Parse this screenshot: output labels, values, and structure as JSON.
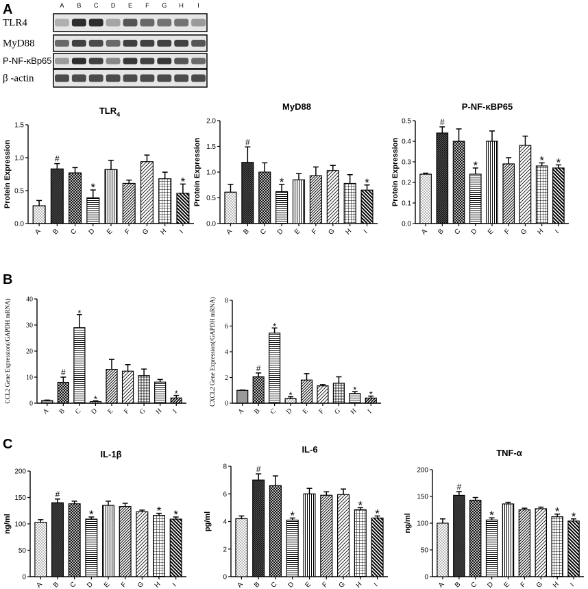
{
  "panel_letters": {
    "a": "A",
    "b": "B",
    "c": "C"
  },
  "blot": {
    "lanes": [
      "A",
      "B",
      "C",
      "D",
      "E",
      "F",
      "G",
      "H",
      "I"
    ],
    "rows": [
      {
        "label": "TLR4",
        "intensity": [
          0.25,
          0.9,
          0.9,
          0.3,
          0.7,
          0.6,
          0.55,
          0.55,
          0.35
        ]
      },
      {
        "label": "MyD88",
        "intensity": [
          0.6,
          0.8,
          0.75,
          0.6,
          0.8,
          0.8,
          0.8,
          0.8,
          0.7
        ]
      },
      {
        "label": "P-NF-κBp65",
        "intensity": [
          0.35,
          0.9,
          0.8,
          0.45,
          0.85,
          0.8,
          0.85,
          0.7,
          0.6
        ]
      },
      {
        "label": "β -actin",
        "intensity": [
          0.75,
          0.75,
          0.75,
          0.75,
          0.75,
          0.75,
          0.75,
          0.75,
          0.75
        ]
      }
    ]
  },
  "chart_data": [
    {
      "id": "tlr4",
      "type": "bar",
      "title": "TLR",
      "title_sub": "4",
      "ylabel": "Protein Expression",
      "categories": [
        "A",
        "B",
        "C",
        "D",
        "E",
        "F",
        "G",
        "H",
        "I"
      ],
      "values": [
        0.27,
        0.83,
        0.77,
        0.39,
        0.82,
        0.61,
        0.94,
        0.68,
        0.46
      ],
      "errors": [
        0.08,
        0.08,
        0.08,
        0.12,
        0.14,
        0.05,
        0.1,
        0.1,
        0.14
      ],
      "markers": [
        "",
        "#",
        "",
        "*",
        "",
        "",
        "",
        "",
        "*"
      ],
      "ylim": [
        0,
        1.5
      ],
      "yticks": [
        "0.0",
        "0.5",
        "1.0",
        "1.5"
      ],
      "ytick_values": [
        0,
        0.5,
        1,
        1.5
      ]
    },
    {
      "id": "myd88",
      "type": "bar",
      "title": "MyD88",
      "ylabel": "Protein Expression",
      "categories": [
        "A",
        "B",
        "C",
        "D",
        "E",
        "F",
        "G",
        "H",
        "I"
      ],
      "values": [
        0.61,
        1.19,
        1.0,
        0.62,
        0.85,
        0.93,
        1.03,
        0.78,
        0.65
      ],
      "errors": [
        0.15,
        0.3,
        0.18,
        0.14,
        0.12,
        0.17,
        0.1,
        0.17,
        0.1
      ],
      "markers": [
        "",
        "#",
        "",
        "*",
        "",
        "",
        "",
        "",
        "*"
      ],
      "ylim": [
        0,
        2.0
      ],
      "yticks": [
        "0.0",
        "0.5",
        "1.0",
        "1.5",
        "2.0"
      ],
      "ytick_values": [
        0,
        0.5,
        1,
        1.5,
        2
      ]
    },
    {
      "id": "pnfkb",
      "type": "bar",
      "title": "P-NF-κBP65",
      "ylabel": "Protein Expression",
      "categories": [
        "A",
        "B",
        "C",
        "D",
        "E",
        "F",
        "G",
        "H",
        "I"
      ],
      "values": [
        0.24,
        0.44,
        0.4,
        0.24,
        0.4,
        0.29,
        0.38,
        0.28,
        0.27
      ],
      "errors": [
        0.005,
        0.03,
        0.06,
        0.03,
        0.05,
        0.03,
        0.045,
        0.015,
        0.015
      ],
      "markers": [
        "",
        "#",
        "",
        "*",
        "",
        "",
        "",
        "*",
        "*"
      ],
      "ylim": [
        0,
        0.5
      ],
      "yticks": [
        "0.0",
        "0.1",
        "0.2",
        "0.3",
        "0.4",
        "0.5"
      ],
      "ytick_values": [
        0,
        0.1,
        0.2,
        0.3,
        0.4,
        0.5
      ]
    },
    {
      "id": "ccl2",
      "type": "bar",
      "title": "",
      "ylabel": "CCL2 Gene Expression(/GAPDH mRNA)",
      "categories": [
        "A",
        "B",
        "C",
        "D",
        "E",
        "F",
        "G",
        "H",
        "I"
      ],
      "values": [
        1.0,
        8.0,
        29.0,
        0.6,
        13.0,
        12.3,
        10.6,
        8.1,
        2.0
      ],
      "errors": [
        0.2,
        2.0,
        5.0,
        0.3,
        3.8,
        2.5,
        2.5,
        1.0,
        1.0
      ],
      "markers": [
        "",
        "#",
        "*",
        "*",
        "",
        "",
        "",
        "",
        "*"
      ],
      "ylim": [
        0,
        40
      ],
      "yticks": [
        "0",
        "10",
        "20",
        "30",
        "40"
      ],
      "ytick_values": [
        0,
        10,
        20,
        30,
        40
      ]
    },
    {
      "id": "cxcl2",
      "type": "bar",
      "title": "",
      "ylabel": "CXCL2 Gene Expression(/GAPDH mRNA)",
      "categories": [
        "A",
        "B",
        "C",
        "D",
        "E",
        "F",
        "G",
        "H",
        "I"
      ],
      "values": [
        1.0,
        2.05,
        5.45,
        0.35,
        1.8,
        1.35,
        1.55,
        0.75,
        0.4
      ],
      "errors": [
        0.02,
        0.3,
        0.4,
        0.15,
        0.5,
        0.1,
        0.5,
        0.15,
        0.15
      ],
      "markers": [
        "",
        "#",
        "*",
        "*",
        "",
        "",
        "",
        "*",
        "*"
      ],
      "ylim": [
        0,
        8
      ],
      "yticks": [
        "0",
        "2",
        "4",
        "6",
        "8"
      ],
      "ytick_values": [
        0,
        2,
        4,
        6,
        8
      ]
    },
    {
      "id": "il1b",
      "type": "bar",
      "title": "IL-1β",
      "ylabel": "ng/ml",
      "categories": [
        "A",
        "B",
        "C",
        "D",
        "E",
        "F",
        "G",
        "H",
        "I"
      ],
      "values": [
        103,
        140,
        138,
        109,
        135,
        133,
        123,
        116,
        109
      ],
      "errors": [
        5,
        7,
        5,
        4,
        8,
        6,
        3,
        4,
        4
      ],
      "markers": [
        "",
        "#",
        "",
        "*",
        "",
        "",
        "",
        "*",
        "*"
      ],
      "ylim": [
        0,
        200
      ],
      "yticks": [
        "0",
        "50",
        "100",
        "150",
        "200"
      ],
      "ytick_values": [
        0,
        50,
        100,
        150,
        200
      ]
    },
    {
      "id": "il6",
      "type": "bar",
      "title": "IL-6",
      "ylabel": "pg/ml",
      "categories": [
        "A",
        "B",
        "C",
        "D",
        "E",
        "F",
        "G",
        "H",
        "I"
      ],
      "values": [
        4.2,
        7.0,
        6.6,
        4.1,
        6.0,
        5.9,
        5.95,
        4.85,
        4.25
      ],
      "errors": [
        0.2,
        0.45,
        0.7,
        0.15,
        0.4,
        0.25,
        0.4,
        0.15,
        0.15
      ],
      "markers": [
        "",
        "#",
        "",
        "*",
        "",
        "",
        "",
        "*",
        "*"
      ],
      "ylim": [
        0,
        8
      ],
      "yticks": [
        "0",
        "2",
        "4",
        "6",
        "8"
      ],
      "ytick_values": [
        0,
        2,
        4,
        6,
        8
      ]
    },
    {
      "id": "tnfa",
      "type": "bar",
      "title": "TNF-α",
      "ylabel": "ng/ml",
      "categories": [
        "A",
        "B",
        "C",
        "D",
        "E",
        "F",
        "G",
        "H",
        "I"
      ],
      "values": [
        100,
        152,
        143,
        106,
        136,
        125,
        127,
        112,
        104
      ],
      "errors": [
        8,
        7,
        5,
        4,
        3,
        3,
        3,
        5,
        4
      ],
      "markers": [
        "",
        "#",
        "",
        "*",
        "",
        "",
        "",
        "*",
        "*"
      ],
      "ylim": [
        0,
        200
      ],
      "yticks": [
        "0",
        "50",
        "100",
        "150",
        "200"
      ],
      "ytick_values": [
        0,
        50,
        100,
        150,
        200
      ]
    }
  ]
}
